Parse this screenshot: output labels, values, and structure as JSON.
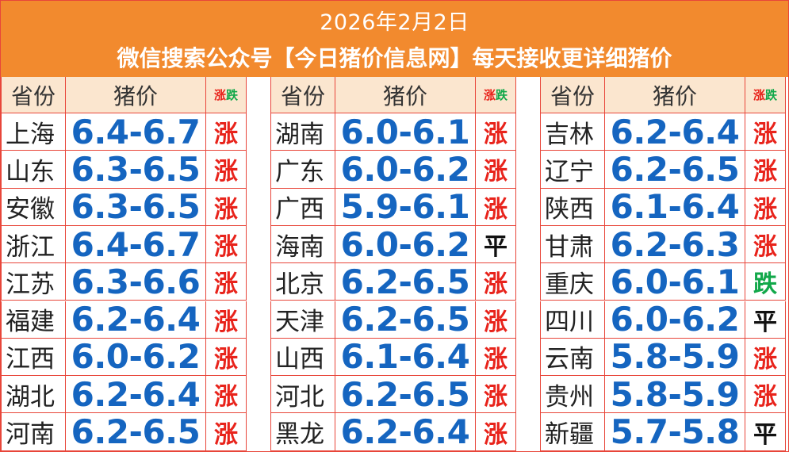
{
  "header": {
    "date": "2026年2月2日",
    "promo": "微信搜索公众号【今日猪价信息网】每天接收更详细猪价"
  },
  "columns_header": {
    "province": "省份",
    "price": "猪价",
    "trend_up": "涨",
    "trend_down": "跌"
  },
  "colors": {
    "banner": "#f28a2e",
    "header_fill": "#fbe6cf",
    "grid_line": "#e8463a",
    "price_text": "#1565c0",
    "up": "#e8231b",
    "down": "#12a84a",
    "flat": "#111111"
  },
  "groups": [
    {
      "rows": [
        {
          "province": "上海",
          "price": "6.4-6.7",
          "trend": "涨"
        },
        {
          "province": "山东",
          "price": "6.3-6.5",
          "trend": "涨"
        },
        {
          "province": "安徽",
          "price": "6.3-6.5",
          "trend": "涨"
        },
        {
          "province": "浙江",
          "price": "6.4-6.7",
          "trend": "涨"
        },
        {
          "province": "江苏",
          "price": "6.3-6.6",
          "trend": "涨"
        },
        {
          "province": "福建",
          "price": "6.2-6.4",
          "trend": "涨"
        },
        {
          "province": "江西",
          "price": "6.0-6.2",
          "trend": "涨"
        },
        {
          "province": "湖北",
          "price": "6.2-6.4",
          "trend": "涨"
        },
        {
          "province": "河南",
          "price": "6.2-6.5",
          "trend": "涨"
        }
      ]
    },
    {
      "rows": [
        {
          "province": "湖南",
          "price": "6.0-6.1",
          "trend": "涨"
        },
        {
          "province": "广东",
          "price": "6.0-6.2",
          "trend": "涨"
        },
        {
          "province": "广西",
          "price": "5.9-6.1",
          "trend": "涨"
        },
        {
          "province": "海南",
          "price": "6.0-6.2",
          "trend": "平"
        },
        {
          "province": "北京",
          "price": "6.2-6.5",
          "trend": "涨"
        },
        {
          "province": "天津",
          "price": "6.2-6.5",
          "trend": "涨"
        },
        {
          "province": "山西",
          "price": "6.1-6.4",
          "trend": "涨"
        },
        {
          "province": "河北",
          "price": "6.2-6.5",
          "trend": "涨"
        },
        {
          "province": "黑龙",
          "price": "6.2-6.4",
          "trend": "涨"
        }
      ]
    },
    {
      "rows": [
        {
          "province": "吉林",
          "price": "6.2-6.4",
          "trend": "涨"
        },
        {
          "province": "辽宁",
          "price": "6.2-6.5",
          "trend": "涨"
        },
        {
          "province": "陕西",
          "price": "6.1-6.4",
          "trend": "涨"
        },
        {
          "province": "甘肃",
          "price": "6.2-6.3",
          "trend": "涨"
        },
        {
          "province": "重庆",
          "price": "6.0-6.1",
          "trend": "跌"
        },
        {
          "province": "四川",
          "price": "6.0-6.2",
          "trend": "平"
        },
        {
          "province": "云南",
          "price": "5.8-5.9",
          "trend": "涨"
        },
        {
          "province": "贵州",
          "price": "5.8-5.9",
          "trend": "涨"
        },
        {
          "province": "新疆",
          "price": "5.7-5.8",
          "trend": "平"
        }
      ]
    }
  ]
}
